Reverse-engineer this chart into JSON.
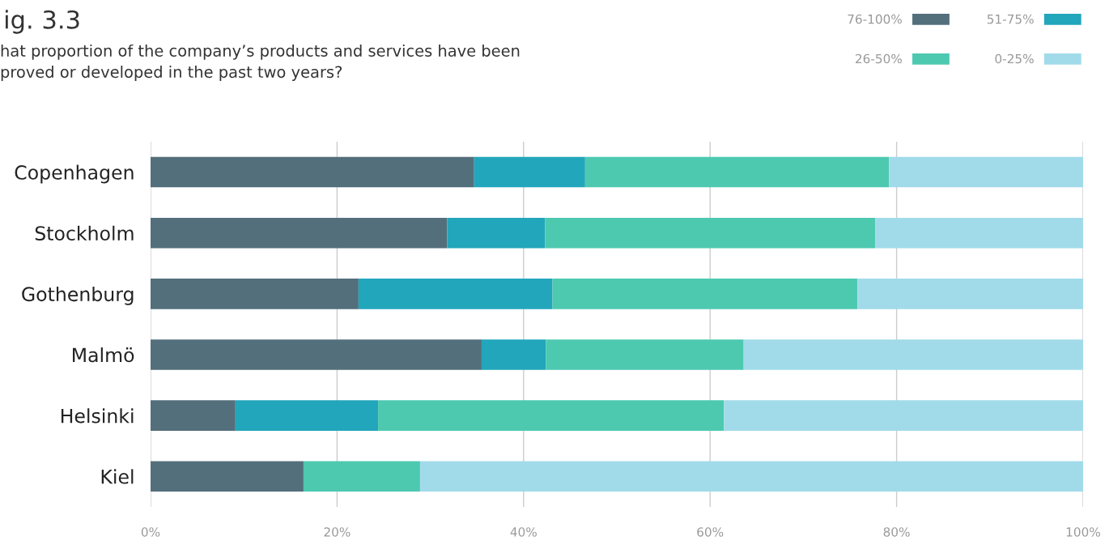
{
  "chart_data": {
    "type": "bar",
    "orientation": "horizontal",
    "stacked": true,
    "title": "ig. 3.3",
    "subtitle": "hat proportion of the company’s products and services have been\nproved or developed in the past two years?",
    "categories": [
      "Copenhagen",
      "Stockholm",
      "Gothenburg",
      "Malmö",
      "Helsinki",
      "Kiel"
    ],
    "series": [
      {
        "name": "76-100%",
        "color": "#546f7c",
        "values": [
          34.7,
          31.8,
          22.3,
          35.5,
          9.1,
          16.4
        ]
      },
      {
        "name": "51-75%",
        "color": "#22a6bb",
        "values": [
          11.9,
          10.5,
          20.8,
          6.9,
          15.3,
          0
        ]
      },
      {
        "name": "26-50%",
        "color": "#4dc9b0",
        "values": [
          32.6,
          35.4,
          32.7,
          21.2,
          37.1,
          12.5
        ]
      },
      {
        "name": "0-25%",
        "color": "#a1dbea",
        "values": [
          20.8,
          22.3,
          24.2,
          36.4,
          38.5,
          71.1
        ]
      }
    ],
    "xlim": [
      0,
      100
    ],
    "xticks": [
      {
        "value": 0,
        "label": "0%"
      },
      {
        "value": 20,
        "label": "20%"
      },
      {
        "value": 40,
        "label": "40%"
      },
      {
        "value": 60,
        "label": "60%"
      },
      {
        "value": 80,
        "label": "80%"
      },
      {
        "value": 100,
        "label": "100%"
      }
    ],
    "grid": "x",
    "legend": "top right"
  }
}
